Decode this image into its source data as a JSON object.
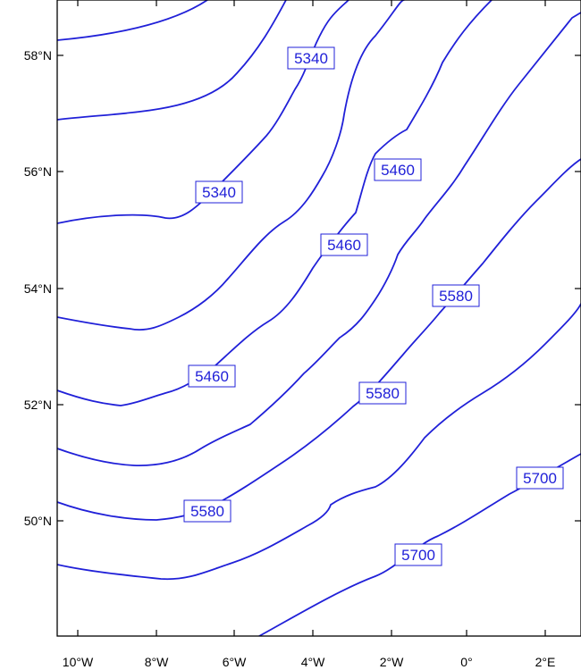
{
  "map": {
    "type": "contour-map",
    "line_color": "#2020d8",
    "x_ticks": [
      "10°W",
      "8°W",
      "6°W",
      "4°W",
      "2°W",
      "0°",
      "2°E"
    ],
    "y_ticks": [
      "58°N",
      "56°N",
      "54°N",
      "52°N",
      "50°N"
    ],
    "contour_labels": [
      "5340",
      "5340",
      "5460",
      "5460",
      "5460",
      "5580",
      "5580",
      "5580",
      "5700",
      "5700"
    ]
  }
}
